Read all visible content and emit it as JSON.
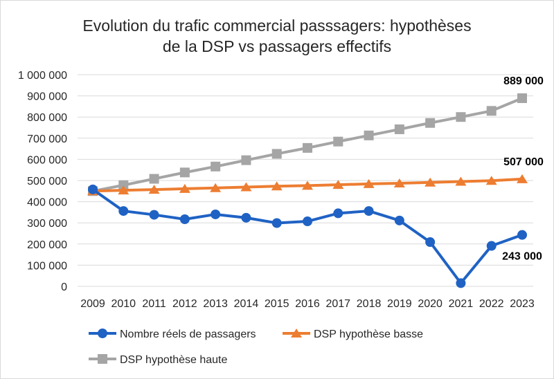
{
  "chart_data": {
    "type": "line",
    "title_lines": [
      "Evolution du trafic commercial passsagers: hypothèses",
      "de la DSP vs passagers effectifs"
    ],
    "categories": [
      "2009",
      "2010",
      "2011",
      "2012",
      "2013",
      "2014",
      "2015",
      "2016",
      "2017",
      "2018",
      "2019",
      "2020",
      "2021",
      "2022",
      "2023"
    ],
    "ylim": [
      0,
      1000000
    ],
    "ytick_values": [
      0,
      100000,
      200000,
      300000,
      400000,
      500000,
      600000,
      700000,
      800000,
      900000,
      1000000
    ],
    "ytick_labels": [
      "0",
      "100 000",
      "200 000",
      "300 000",
      "400 000",
      "500 000",
      "600 000",
      "700 000",
      "800 000",
      "900 000",
      "1 000 000"
    ],
    "grid": true,
    "legend_position": "bottom",
    "series": [
      {
        "name": "DSP hypothèse haute",
        "color": "#a5a5a5",
        "marker": "square",
        "values": [
          450000,
          478000,
          508000,
          538000,
          566000,
          596000,
          626000,
          654000,
          684000,
          713000,
          742000,
          772000,
          800000,
          829000,
          889000
        ]
      },
      {
        "name": "DSP hypothèse basse",
        "color": "#ed7d31",
        "marker": "triangle",
        "values": [
          450000,
          454000,
          457000,
          461000,
          465000,
          469000,
          473000,
          476000,
          480000,
          484000,
          487000,
          491000,
          495000,
          499000,
          507000
        ]
      },
      {
        "name": "Nombre réels de passagers",
        "color": "#1f62c4",
        "marker": "circle",
        "values": [
          458000,
          356000,
          338000,
          317000,
          340000,
          324000,
          299000,
          307000,
          345000,
          356000,
          311000,
          209000,
          15000,
          191000,
          243000
        ]
      }
    ],
    "data_labels": [
      {
        "series": "DSP hypothèse haute",
        "index": 14,
        "text": "889 000"
      },
      {
        "series": "DSP hypothèse basse",
        "index": 14,
        "text": "507 000"
      },
      {
        "series": "Nombre réels de passagers",
        "index": 14,
        "text": "243 000"
      }
    ],
    "legend": [
      {
        "series": "Nombre réels de passagers",
        "label": "Nombre réels de passagers"
      },
      {
        "series": "DSP hypothèse basse",
        "label": "DSP hypothèse basse"
      },
      {
        "series": "DSP hypothèse haute",
        "label": "DSP hypothèse haute"
      }
    ]
  }
}
